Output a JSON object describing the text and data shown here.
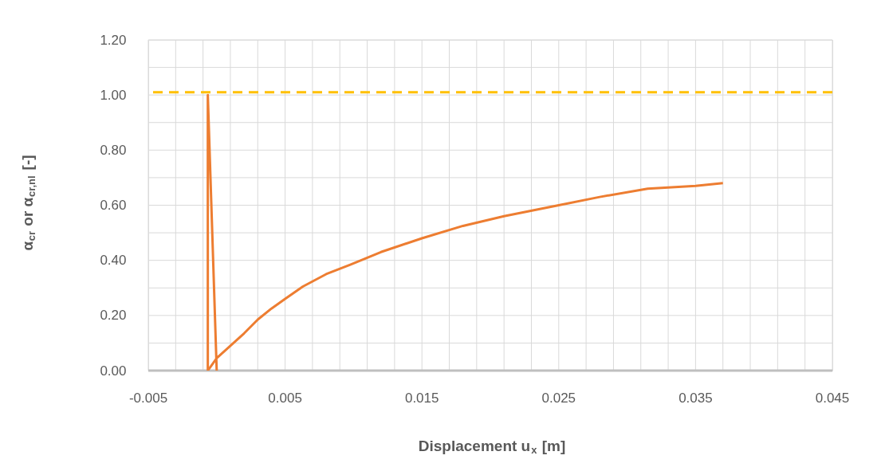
{
  "chart_data": {
    "type": "line",
    "xlabel": "Displacement u$_{x}$ [m]",
    "ylabel": "α$_{cr}$ or α$_{cr,nl}$ [-]",
    "series": [
      {
        "color": "#ed7d31",
        "x": [
          0.0,
          -0.00065,
          -0.00065,
          0.0,
          0.001,
          0.002,
          0.003,
          0.004,
          0.005,
          0.0063,
          0.008,
          0.0098,
          0.012,
          0.015,
          0.018,
          0.021,
          0.025,
          0.028,
          0.0315,
          0.035,
          0.037
        ],
        "values": [
          0.0,
          1.0,
          0.0,
          0.045,
          0.09,
          0.135,
          0.185,
          0.225,
          0.26,
          0.305,
          0.35,
          0.385,
          0.43,
          0.48,
          0.525,
          0.56,
          0.6,
          0.63,
          0.66,
          0.67,
          0.68
        ]
      }
    ],
    "xlim": [
      -0.005,
      0.045
    ],
    "xticks": [
      -0.005,
      {
        "value": -0.003,
        "label": null
      },
      {
        "value": -0.001,
        "label": null
      },
      {
        "value": 0.001,
        "label": null
      },
      {
        "value": 0.003,
        "label": null
      },
      0.005,
      {
        "value": 0.007,
        "label": null
      },
      {
        "value": 0.009,
        "label": null
      },
      {
        "value": 0.011,
        "label": null
      },
      {
        "value": 0.013,
        "label": null
      },
      0.015,
      {
        "value": 0.017,
        "label": null
      },
      {
        "value": 0.019,
        "label": null
      },
      {
        "value": 0.021,
        "label": null
      },
      {
        "value": 0.023,
        "label": null
      },
      0.025,
      {
        "value": 0.027,
        "label": null
      },
      {
        "value": 0.029,
        "label": null
      },
      {
        "value": 0.031,
        "label": null
      },
      {
        "value": 0.033,
        "label": null
      },
      0.035,
      {
        "value": 0.037,
        "label": null
      },
      {
        "value": 0.039,
        "label": null
      },
      {
        "value": 0.041,
        "label": null
      },
      {
        "value": 0.043,
        "label": null
      },
      0.045
    ],
    "ylim": [
      0,
      1.2
    ],
    "yticks": [
      {
        "value": 0,
        "label": "0.00"
      },
      {
        "value": 0.1,
        "label": null
      },
      {
        "value": 0.2,
        "label": "0.20"
      },
      {
        "value": 0.3,
        "label": null
      },
      {
        "value": 0.4,
        "label": "0.40"
      },
      {
        "value": 0.5,
        "label": null
      },
      {
        "value": 0.6,
        "label": "0.60"
      },
      {
        "value": 0.7,
        "label": null
      },
      {
        "value": 0.8,
        "label": "0.80"
      },
      {
        "value": 0.9,
        "label": null
      },
      {
        "value": 1.0,
        "label": "1.00"
      },
      {
        "value": 1.1,
        "label": null
      },
      {
        "value": 1.2,
        "label": "1.20"
      }
    ],
    "ref_lines": [
      {
        "axis": "y",
        "value": 1.01,
        "color": "#ffc000",
        "line_style": "dashed"
      }
    ],
    "grid": true,
    "marker": "none",
    "line_style": "solid"
  }
}
